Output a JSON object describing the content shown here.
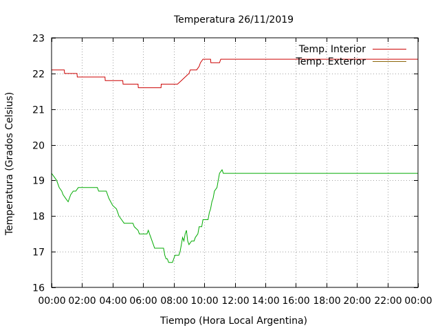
{
  "chart_data": {
    "type": "line",
    "title": "Temperatura 26/11/2019",
    "xlabel": "Tiempo (Hora Local Argentina)",
    "ylabel": "Temperatura (Grados Celsius)",
    "xlim": [
      "00:00",
      "24:00"
    ],
    "ylim": [
      16,
      23
    ],
    "grid": true,
    "legend_position": "top-right",
    "x_ticks": [
      "00:00",
      "02:00",
      "04:00",
      "06:00",
      "08:00",
      "10:00",
      "12:00",
      "14:00",
      "16:00",
      "18:00",
      "20:00",
      "22:00",
      "00:00"
    ],
    "y_ticks": [
      "16",
      "17",
      "18",
      "19",
      "20",
      "21",
      "22",
      "23"
    ],
    "series": [
      {
        "name": "Temp. Interior",
        "color": "#cc0000",
        "points": [
          [
            "00:00",
            22.1
          ],
          [
            "00:50",
            22.1
          ],
          [
            "00:51",
            22.0
          ],
          [
            "01:40",
            22.0
          ],
          [
            "01:41",
            21.9
          ],
          [
            "03:30",
            21.9
          ],
          [
            "03:31",
            21.8
          ],
          [
            "04:40",
            21.8
          ],
          [
            "04:41",
            21.7
          ],
          [
            "05:40",
            21.7
          ],
          [
            "05:41",
            21.6
          ],
          [
            "07:10",
            21.6
          ],
          [
            "07:11",
            21.7
          ],
          [
            "08:15",
            21.7
          ],
          [
            "08:30",
            21.8
          ],
          [
            "08:45",
            21.9
          ],
          [
            "09:00",
            22.0
          ],
          [
            "09:05",
            22.1
          ],
          [
            "09:30",
            22.1
          ],
          [
            "09:40",
            22.2
          ],
          [
            "09:45",
            22.3
          ],
          [
            "09:55",
            22.4
          ],
          [
            "10:25",
            22.4
          ],
          [
            "10:26",
            22.3
          ],
          [
            "11:00",
            22.3
          ],
          [
            "11:05",
            22.4
          ],
          [
            "24:00",
            22.4
          ]
        ]
      },
      {
        "name": "Temp. Exterior",
        "color": "#00aa00",
        "legend_color": "#8b6508",
        "points": [
          [
            "00:00",
            19.2
          ],
          [
            "00:10",
            19.1
          ],
          [
            "00:20",
            19.0
          ],
          [
            "00:30",
            18.8
          ],
          [
            "00:40",
            18.7
          ],
          [
            "00:45",
            18.6
          ],
          [
            "00:55",
            18.5
          ],
          [
            "01:05",
            18.4
          ],
          [
            "01:15",
            18.6
          ],
          [
            "01:25",
            18.7
          ],
          [
            "01:35",
            18.7
          ],
          [
            "01:45",
            18.8
          ],
          [
            "03:00",
            18.8
          ],
          [
            "03:05",
            18.7
          ],
          [
            "03:35",
            18.7
          ],
          [
            "03:45",
            18.5
          ],
          [
            "04:00",
            18.3
          ],
          [
            "04:15",
            18.2
          ],
          [
            "04:25",
            18.0
          ],
          [
            "04:35",
            17.9
          ],
          [
            "04:45",
            17.8
          ],
          [
            "05:20",
            17.8
          ],
          [
            "05:25",
            17.7
          ],
          [
            "05:40",
            17.6
          ],
          [
            "05:45",
            17.5
          ],
          [
            "06:15",
            17.5
          ],
          [
            "06:20",
            17.6
          ],
          [
            "06:25",
            17.5
          ],
          [
            "06:30",
            17.4
          ],
          [
            "06:40",
            17.2
          ],
          [
            "06:45",
            17.1
          ],
          [
            "07:20",
            17.1
          ],
          [
            "07:25",
            16.9
          ],
          [
            "07:30",
            16.8
          ],
          [
            "07:35",
            16.8
          ],
          [
            "07:40",
            16.7
          ],
          [
            "07:55",
            16.7
          ],
          [
            "08:00",
            16.8
          ],
          [
            "08:05",
            16.9
          ],
          [
            "08:20",
            16.9
          ],
          [
            "08:25",
            17.0
          ],
          [
            "08:30",
            17.2
          ],
          [
            "08:35",
            17.4
          ],
          [
            "08:40",
            17.3
          ],
          [
            "08:45",
            17.5
          ],
          [
            "08:50",
            17.6
          ],
          [
            "08:55",
            17.3
          ],
          [
            "09:00",
            17.2
          ],
          [
            "09:10",
            17.3
          ],
          [
            "09:20",
            17.3
          ],
          [
            "09:25",
            17.4
          ],
          [
            "09:35",
            17.5
          ],
          [
            "09:40",
            17.7
          ],
          [
            "09:50",
            17.7
          ],
          [
            "09:55",
            17.9
          ],
          [
            "10:15",
            17.9
          ],
          [
            "10:20",
            18.1
          ],
          [
            "10:25",
            18.2
          ],
          [
            "10:30",
            18.4
          ],
          [
            "10:35",
            18.5
          ],
          [
            "10:40",
            18.7
          ],
          [
            "10:50",
            18.8
          ],
          [
            "10:55",
            19.0
          ],
          [
            "11:00",
            19.2
          ],
          [
            "11:10",
            19.3
          ],
          [
            "11:15",
            19.2
          ],
          [
            "24:00",
            19.2
          ]
        ]
      }
    ]
  }
}
